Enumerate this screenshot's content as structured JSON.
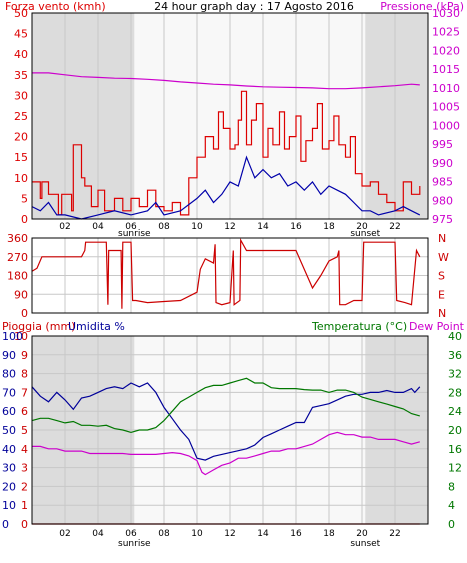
{
  "colors": {
    "wind": "#dd0000",
    "wind_avg": "#0000aa",
    "pressure": "#cc00cc",
    "direction": "#cc0000",
    "rain": "#cc0000",
    "humidity": "#000099",
    "temperature": "#007700",
    "dewpoint": "#cc00cc",
    "grid": "#c8c8c8",
    "daylight": "#f8f8f8",
    "night": "#dcdcdc"
  },
  "hour_ticks": [
    "02",
    "04",
    "06",
    "08",
    "10",
    "12",
    "14",
    "16",
    "18",
    "20",
    "22"
  ],
  "sunrise_label": "sunrise",
  "sunset_label": "sunset",
  "sunrise_hour": 6.2,
  "sunset_hour": 20.2,
  "chart_data": [
    {
      "type": "line",
      "title": "24 hour graph day : 17 Agosto 2016",
      "left_axis_label": "Forza vento (kmh)",
      "right_axis_label": "Pressione (kPa)",
      "left_ticks": [
        "50",
        "45",
        "40",
        "35",
        "30",
        "25",
        "20",
        "15",
        "10",
        "5",
        "0"
      ],
      "right_ticks": [
        "1030",
        "1025",
        "1020",
        "1015",
        "1010",
        "1005",
        "1000",
        "995",
        "990",
        "985",
        "980",
        "975"
      ],
      "left_range": [
        0,
        50
      ],
      "right_range": [
        975,
        1030
      ],
      "series": [
        {
          "key": "pressure",
          "axis": "right",
          "x": [
            0,
            1,
            2,
            3,
            4,
            5,
            6,
            7,
            8,
            9,
            10,
            11,
            12,
            13,
            14,
            15,
            16,
            17,
            18,
            19,
            20,
            21,
            22,
            23,
            23.5
          ],
          "y": [
            1014,
            1014,
            1013.5,
            1013,
            1012.8,
            1012.6,
            1012.5,
            1012.3,
            1012,
            1011.6,
            1011.3,
            1011,
            1010.8,
            1010.5,
            1010.3,
            1010.2,
            1010.1,
            1010,
            1009.8,
            1009.8,
            1010,
            1010.3,
            1010.6,
            1011,
            1010.8
          ]
        },
        {
          "key": "wind",
          "axis": "left",
          "x": [
            0,
            0.5,
            0.6,
            1,
            1.6,
            1.8,
            2.4,
            2.5,
            3,
            3.2,
            3.6,
            4,
            4.4,
            5,
            5.5,
            6,
            6.5,
            7,
            7.5,
            8,
            8.5,
            9,
            9.5,
            10,
            10.5,
            11,
            11.3,
            11.6,
            12,
            12.3,
            12.5,
            12.7,
            13,
            13.3,
            13.6,
            14,
            14.3,
            14.6,
            15,
            15.3,
            15.6,
            16,
            16.3,
            16.6,
            17,
            17.3,
            17.6,
            18,
            18.3,
            18.6,
            19,
            19.3,
            19.6,
            20,
            20.5,
            21,
            21.5,
            22,
            22.5,
            23,
            23.5
          ],
          "y": [
            9,
            5,
            9,
            6,
            1,
            6,
            2,
            18,
            10,
            8,
            3,
            7,
            2,
            5,
            2,
            5,
            3,
            7,
            3,
            2,
            4,
            1,
            10,
            15,
            20,
            17,
            26,
            22,
            17,
            18,
            24,
            31,
            18,
            24,
            28,
            15,
            22,
            18,
            26,
            17,
            20,
            25,
            14,
            19,
            22,
            28,
            17,
            19,
            25,
            18,
            15,
            20,
            11,
            8,
            9,
            6,
            4,
            2,
            9,
            6,
            8
          ]
        },
        {
          "key": "wind_avg",
          "axis": "left",
          "x": [
            0,
            0.5,
            1,
            1.5,
            2,
            3,
            4,
            5,
            6,
            7,
            7.5,
            8,
            9,
            10,
            10.5,
            11,
            11.5,
            12,
            12.5,
            13,
            13.5,
            14,
            14.5,
            15,
            15.5,
            16,
            16.5,
            17,
            17.5,
            18,
            18.5,
            19,
            19.5,
            20,
            20.5,
            21,
            22,
            22.5,
            23,
            23.5
          ],
          "y": [
            3,
            2,
            4,
            1,
            1,
            0,
            1,
            2,
            1,
            2,
            4,
            1,
            2,
            5,
            7,
            4,
            6,
            9,
            8,
            15,
            10,
            12,
            10,
            11,
            8,
            9,
            7,
            9,
            6,
            8,
            7,
            6,
            4,
            2,
            2,
            1,
            2,
            3,
            2,
            1
          ]
        }
      ]
    },
    {
      "type": "line",
      "title": "",
      "left_ticks": [
        "360",
        "270",
        "180",
        "90",
        "0"
      ],
      "right_ticks": [
        "N",
        "W",
        "S",
        "E",
        "N"
      ],
      "left_range": [
        0,
        360
      ],
      "series": [
        {
          "key": "direction",
          "axis": "left",
          "x": [
            0,
            0.3,
            0.6,
            1,
            1.5,
            2,
            2.5,
            3,
            3.2,
            3.25,
            3.5,
            4,
            4.5,
            4.6,
            4.65,
            5,
            5.4,
            5.45,
            5.5,
            6,
            6.1,
            6.3,
            7,
            8,
            9,
            10,
            10.2,
            10.5,
            11,
            11.1,
            11.15,
            11.5,
            12,
            12.2,
            12.25,
            12.6,
            12.65,
            13,
            13.5,
            14,
            15,
            16,
            17,
            17.5,
            18,
            18.5,
            18.6,
            18.65,
            19,
            19.5,
            20,
            20.1,
            20.15,
            21,
            21.5,
            22,
            22.1,
            22.6,
            23,
            23.3,
            23.5
          ],
          "y": [
            200,
            215,
            270,
            270,
            270,
            270,
            270,
            270,
            300,
            340,
            340,
            340,
            340,
            40,
            300,
            300,
            300,
            20,
            340,
            340,
            60,
            60,
            50,
            55,
            60,
            100,
            210,
            260,
            240,
            330,
            50,
            40,
            50,
            300,
            40,
            60,
            350,
            300,
            300,
            300,
            300,
            300,
            120,
            180,
            250,
            270,
            300,
            40,
            40,
            60,
            60,
            340,
            340,
            340,
            340,
            340,
            60,
            50,
            40,
            300,
            270
          ]
        }
      ]
    },
    {
      "type": "line",
      "title": "",
      "left_axis_label_1": "Pioggia (mm)",
      "left_axis_label_2": "Umidita %",
      "right_axis_label_1": "Temperatura (°C)",
      "right_axis_label_2": "Dew Point",
      "left_ticks_rain": [
        "10",
        "9",
        "8",
        "7",
        "6",
        "5",
        "4",
        "3",
        "2",
        "1",
        "0"
      ],
      "left_ticks_hum": [
        "100",
        "90",
        "80",
        "70",
        "60",
        "50",
        "40",
        "30",
        "20",
        "10",
        "0"
      ],
      "right_ticks": [
        "40",
        "36",
        "32",
        "28",
        "24",
        "20",
        "16",
        "12",
        "8",
        "4",
        "0"
      ],
      "left_range": [
        0,
        100
      ],
      "right_range": [
        0,
        40
      ],
      "series": [
        {
          "key": "humidity",
          "axis": "left",
          "x": [
            0,
            0.5,
            1,
            1.5,
            2,
            2.5,
            3,
            3.5,
            4,
            4.5,
            5,
            5.5,
            6,
            6.5,
            7,
            7.5,
            8,
            8.5,
            9,
            9.5,
            10,
            10.5,
            11,
            11.5,
            12,
            12.5,
            13,
            13.5,
            14,
            14.5,
            15,
            15.5,
            16,
            16.5,
            17,
            17.5,
            18,
            18.5,
            19,
            19.5,
            20,
            20.5,
            21,
            21.5,
            22,
            22.5,
            23,
            23.2,
            23.5
          ],
          "y": [
            73,
            68,
            65,
            70,
            66,
            61,
            67,
            68,
            70,
            72,
            73,
            72,
            75,
            73,
            75,
            70,
            62,
            56,
            50,
            45,
            35,
            34,
            36,
            37,
            38,
            39,
            40,
            42,
            46,
            48,
            50,
            52,
            54,
            54,
            62,
            63,
            64,
            66,
            68,
            69,
            69,
            70,
            70,
            71,
            70,
            70,
            72,
            70,
            73
          ]
        },
        {
          "key": "temperature",
          "axis": "right",
          "x": [
            0,
            0.5,
            1,
            1.5,
            2,
            2.5,
            3,
            3.5,
            4,
            4.5,
            5,
            5.5,
            6,
            6.5,
            7,
            7.5,
            8,
            8.5,
            9,
            9.5,
            10,
            10.5,
            11,
            11.5,
            12,
            12.5,
            13,
            13.5,
            14,
            14.5,
            15,
            15.5,
            16,
            16.5,
            17,
            17.5,
            18,
            18.5,
            19,
            19.5,
            20,
            20.5,
            21,
            21.5,
            22,
            22.5,
            23,
            23.5
          ],
          "y": [
            22,
            22.5,
            22.5,
            22,
            21.5,
            21.8,
            21,
            21,
            20.8,
            21,
            20.3,
            20,
            19.5,
            20,
            20,
            20.5,
            22,
            24,
            26,
            27,
            28,
            29,
            29.5,
            29.5,
            30,
            30.5,
            31,
            30,
            30,
            29,
            28.8,
            28.8,
            28.8,
            28.6,
            28.5,
            28.5,
            28,
            28.5,
            28.5,
            28,
            27,
            26.5,
            26,
            25.5,
            25,
            24.5,
            23.5,
            23
          ]
        },
        {
          "key": "dewpoint",
          "axis": "right",
          "x": [
            0,
            0.5,
            1,
            1.5,
            2,
            2.5,
            3,
            3.5,
            4,
            4.5,
            5,
            5.5,
            6,
            6.5,
            7,
            7.5,
            8,
            8.5,
            9,
            9.5,
            10,
            10.3,
            10.5,
            11,
            11.5,
            12,
            12.5,
            13,
            13.5,
            14,
            14.5,
            15,
            15.5,
            16,
            16.5,
            17,
            17.5,
            18,
            18.5,
            19,
            19.5,
            20,
            20.5,
            21,
            21.5,
            22,
            22.5,
            23,
            23.5
          ],
          "y": [
            16.5,
            16.5,
            16,
            16,
            15.5,
            15.5,
            15.5,
            15,
            15,
            15,
            15,
            15,
            14.8,
            14.8,
            14.8,
            14.8,
            15,
            15.2,
            15,
            14.5,
            13.5,
            11,
            10.5,
            11.5,
            12.5,
            13,
            14,
            14,
            14.5,
            15,
            15.5,
            15.5,
            16,
            16,
            16.5,
            17,
            18,
            19,
            19.5,
            19,
            19,
            18.5,
            18.5,
            18,
            18,
            18,
            17.5,
            17,
            17.5
          ]
        },
        {
          "key": "rain",
          "axis": "left",
          "x": [
            0,
            23.5
          ],
          "y": [
            0,
            0
          ]
        }
      ]
    }
  ]
}
